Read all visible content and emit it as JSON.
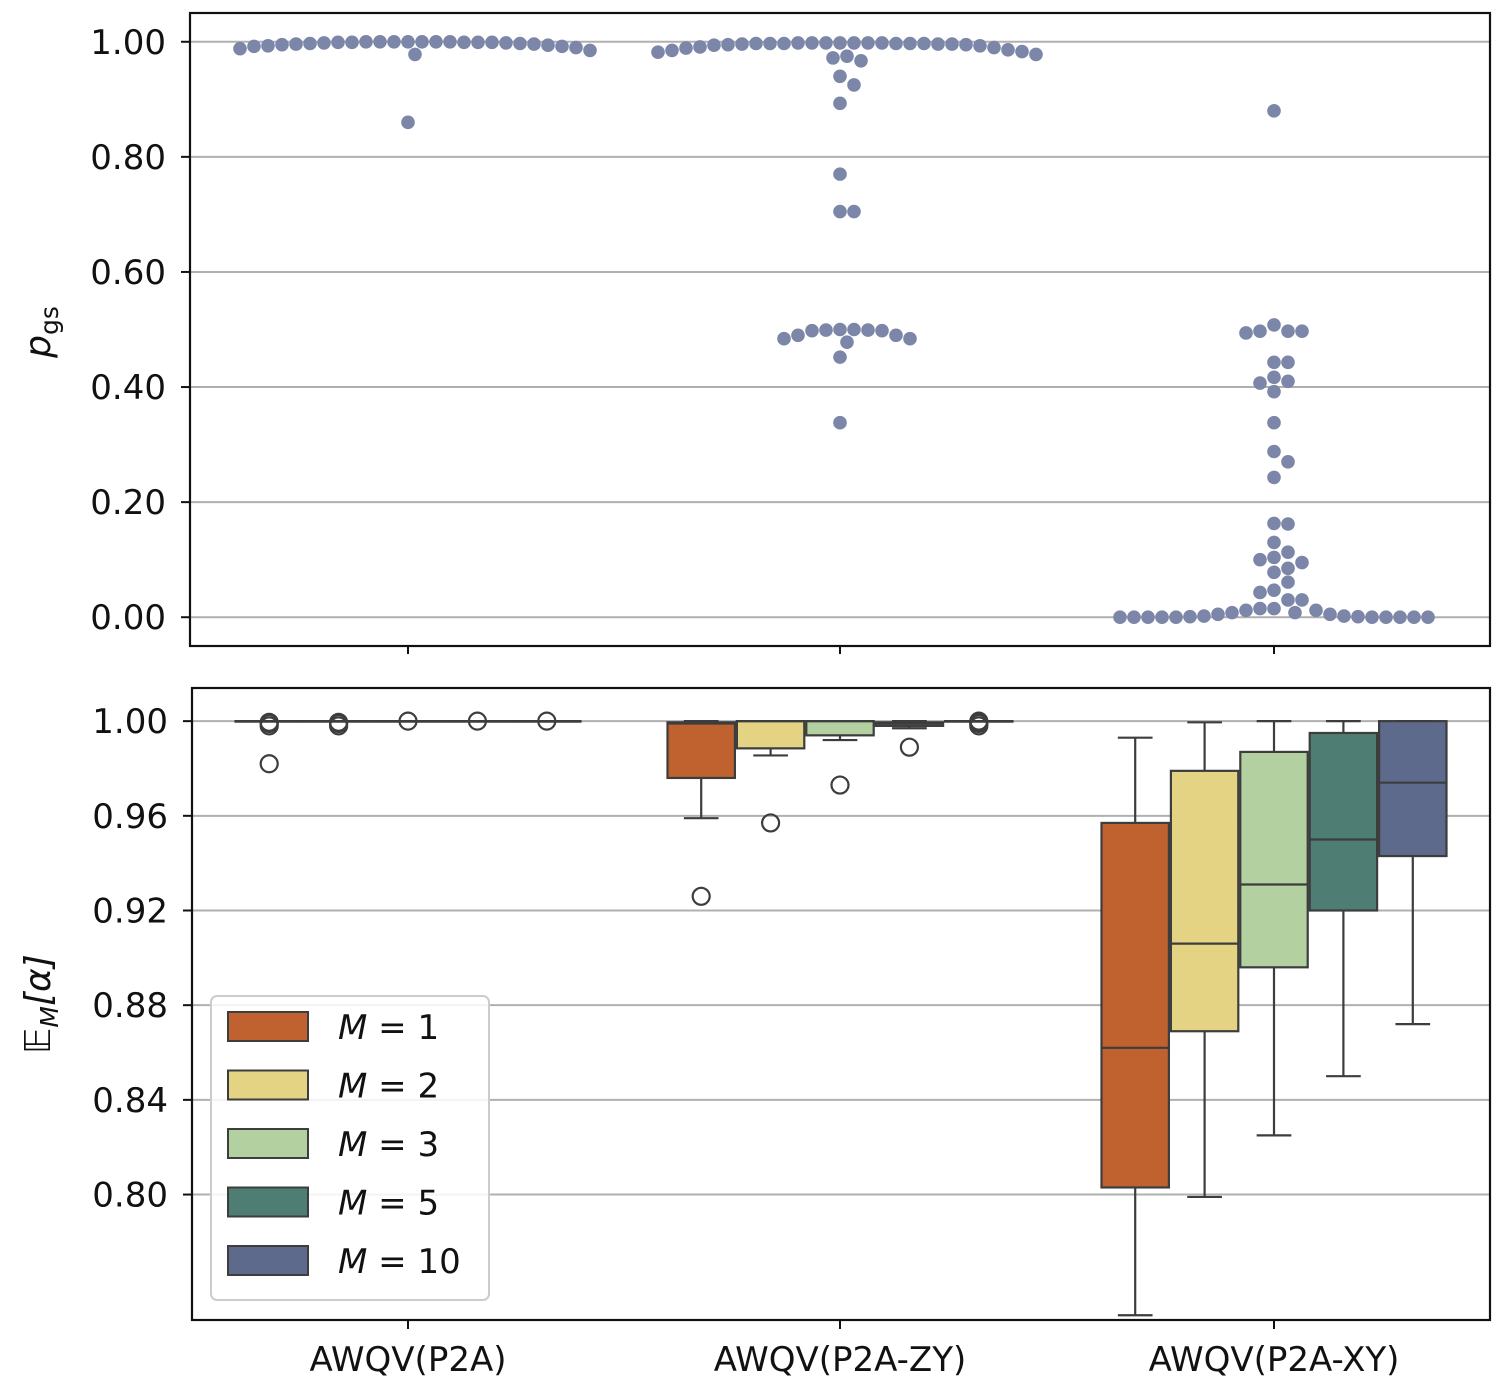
{
  "chart_data": [
    {
      "type": "scatter",
      "subtype": "swarm",
      "ylabel_base": "p",
      "ylabel_sub": "gs",
      "categories": [
        "AWQV(P2A)",
        "AWQV(P2A-ZY)",
        "AWQV(P2A-XY)"
      ],
      "ylim": [
        -0.05,
        1.05
      ],
      "yticks": [
        0.0,
        0.2,
        0.4,
        0.6,
        0.8,
        1.0
      ],
      "ytick_labels": [
        "0.00",
        "0.20",
        "0.40",
        "0.60",
        "0.80",
        "1.00"
      ],
      "grid": true,
      "marker_color": "#7b86a8",
      "series": [
        {
          "name": "AWQV(P2A)",
          "values": [
            1.0,
            1.0,
            1.0,
            1.0,
            0.999,
            0.999,
            0.999,
            0.998,
            0.997,
            0.996,
            0.994,
            0.992,
            0.99,
            0.985,
            0.978,
            0.988,
            0.992,
            0.993,
            0.995,
            0.996,
            0.997,
            0.998,
            0.999,
            0.999,
            1.0,
            1.0,
            1.0,
            0.86
          ]
        },
        {
          "name": "AWQV(P2A-ZY)",
          "values": [
            0.998,
            0.998,
            0.998,
            0.997,
            0.997,
            0.996,
            0.996,
            0.995,
            0.994,
            0.993,
            0.991,
            0.989,
            0.986,
            0.983,
            0.982,
            0.978,
            0.972,
            0.967,
            0.99,
            0.995,
            0.985,
            0.975,
            0.996,
            0.997,
            0.997,
            0.997,
            0.997,
            0.998,
            0.998,
            0.998,
            0.998,
            0.94,
            0.925,
            0.893,
            0.77,
            0.705,
            0.705,
            0.5,
            0.499,
            0.498,
            0.49,
            0.484,
            0.478,
            0.484,
            0.49,
            0.498,
            0.499,
            0.5,
            0.452,
            0.338
          ]
        },
        {
          "name": "AWQV(P2A-XY)",
          "values": [
            0.88,
            0.508,
            0.497,
            0.494,
            0.497,
            0.497,
            0.443,
            0.443,
            0.407,
            0.41,
            0.417,
            0.392,
            0.338,
            0.288,
            0.27,
            0.243,
            0.163,
            0.162,
            0.13,
            0.113,
            0.104,
            0.1,
            0.095,
            0.085,
            0.078,
            0.061,
            0.047,
            0.043,
            0.03,
            0.03,
            0.015,
            0.012,
            0.008,
            0.005,
            0.002,
            0.001,
            0.0,
            0.0,
            0.0,
            0.0,
            0.0,
            0.0,
            0.0,
            0.0,
            0.0,
            0.0,
            0.001,
            0.002,
            0.005,
            0.008,
            0.012,
            0.015
          ]
        }
      ]
    },
    {
      "type": "box",
      "ylabel": "𝔼_M[α]",
      "ylabel_main": "𝔼",
      "ylabel_sub": "M",
      "ylabel_bracket": "[α]",
      "categories": [
        "AWQV(P2A)",
        "AWQV(P2A-ZY)",
        "AWQV(P2A-XY)"
      ],
      "ylim": [
        0.747,
        1.014
      ],
      "yticks": [
        0.8,
        0.84,
        0.88,
        0.92,
        0.96,
        1.0
      ],
      "ytick_labels": [
        "0.80",
        "0.84",
        "0.88",
        "0.92",
        "0.96",
        "1.00"
      ],
      "grid": true,
      "legend_position": "lower-left",
      "series": [
        {
          "name": "M = 1",
          "m_value": "1",
          "color": "#c0622f",
          "boxes": [
            {
              "q1": 1.0,
              "median": 1.0,
              "q3": 1.0,
              "whisker_low": 1.0,
              "whisker_high": 1.0,
              "outliers": [
                0.9995,
                0.999,
                0.998,
                0.982
              ]
            },
            {
              "q1": 0.976,
              "median": 0.999,
              "q3": 0.9995,
              "whisker_low": 0.959,
              "whisker_high": 1.0,
              "outliers": [
                0.926
              ]
            },
            {
              "q1": 0.803,
              "median": 0.862,
              "q3": 0.957,
              "whisker_low": 0.749,
              "whisker_high": 0.993,
              "outliers": []
            }
          ]
        },
        {
          "name": "M = 2",
          "m_value": "2",
          "color": "#e5d384",
          "boxes": [
            {
              "q1": 1.0,
              "median": 1.0,
              "q3": 1.0,
              "whisker_low": 1.0,
              "whisker_high": 1.0,
              "outliers": [
                0.9995,
                0.999,
                0.998
              ]
            },
            {
              "q1": 0.9885,
              "median": 1.0,
              "q3": 1.0,
              "whisker_low": 0.9855,
              "whisker_high": 1.0,
              "outliers": [
                0.957
              ]
            },
            {
              "q1": 0.869,
              "median": 0.906,
              "q3": 0.979,
              "whisker_low": 0.799,
              "whisker_high": 0.9995,
              "outliers": []
            }
          ]
        },
        {
          "name": "M = 3",
          "m_value": "3",
          "color": "#b3d1a0",
          "boxes": [
            {
              "q1": 1.0,
              "median": 1.0,
              "q3": 1.0,
              "whisker_low": 1.0,
              "whisker_high": 1.0,
              "outliers": [
                1.0
              ]
            },
            {
              "q1": 0.994,
              "median": 1.0,
              "q3": 1.0,
              "whisker_low": 0.992,
              "whisker_high": 1.0,
              "outliers": [
                0.973
              ]
            },
            {
              "q1": 0.896,
              "median": 0.931,
              "q3": 0.987,
              "whisker_low": 0.825,
              "whisker_high": 1.0,
              "outliers": []
            }
          ]
        },
        {
          "name": "M = 5",
          "m_value": "5",
          "color": "#4e7d74",
          "boxes": [
            {
              "q1": 1.0,
              "median": 1.0,
              "q3": 1.0,
              "whisker_low": 1.0,
              "whisker_high": 1.0,
              "outliers": [
                1.0
              ]
            },
            {
              "q1": 0.998,
              "median": 0.999,
              "q3": 0.9995,
              "whisker_low": 0.997,
              "whisker_high": 1.0,
              "outliers": [
                0.989
              ]
            },
            {
              "q1": 0.92,
              "median": 0.95,
              "q3": 0.995,
              "whisker_low": 0.85,
              "whisker_high": 1.0,
              "outliers": []
            }
          ]
        },
        {
          "name": "M = 10",
          "m_value": "10",
          "color": "#5d6a8c",
          "boxes": [
            {
              "q1": 1.0,
              "median": 1.0,
              "q3": 1.0,
              "whisker_low": 1.0,
              "whisker_high": 1.0,
              "outliers": [
                1.0
              ]
            },
            {
              "q1": 1.0,
              "median": 1.0,
              "q3": 1.0,
              "whisker_low": 1.0,
              "whisker_high": 1.0,
              "outliers": [
                1.0,
                0.9995,
                0.999,
                0.998
              ]
            },
            {
              "q1": 0.943,
              "median": 0.974,
              "q3": 1.0,
              "whisker_low": 0.872,
              "whisker_high": 1.0,
              "outliers": []
            }
          ]
        }
      ]
    }
  ]
}
